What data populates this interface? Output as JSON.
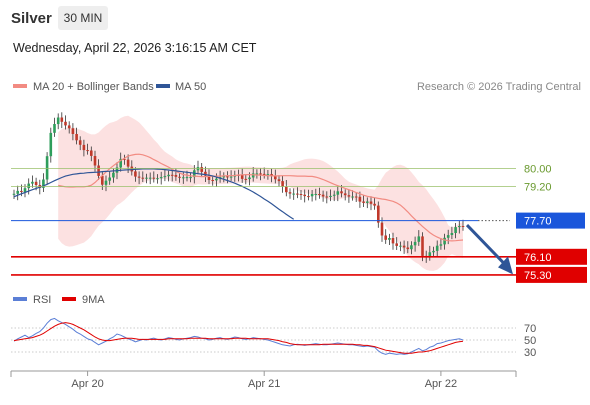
{
  "header": {
    "title": "Silver",
    "timeframe": "30 MIN",
    "datetime": "Wednesday, April 22, 2026 3:16:15 AM CET"
  },
  "colors": {
    "ma20": "#f28b82",
    "ma50": "#2f5597",
    "bollinger_fill": "#fbd7d7",
    "bullish": "#2e9e5b",
    "bearish": "#c0392b",
    "support": "#e00000",
    "pivot": "#1a56db",
    "resistance": "#9ac06a",
    "rsi": "#5b7fd6",
    "rsi_ma": "#e00000",
    "arrow": "#2f5597"
  },
  "chart_data": [
    {
      "type": "candlestick",
      "legend": [
        {
          "name": "MA 20 + Bollinger Bands",
          "color": "#f28b82"
        },
        {
          "name": "MA 50",
          "color": "#2f5597"
        }
      ],
      "credit": "Research © 2026 Trading Central",
      "x_tick_labels": [
        {
          "label": "Apr 20",
          "index": 20
        },
        {
          "label": "Apr 21",
          "index": 68
        },
        {
          "label": "Apr 22",
          "index": 116
        }
      ],
      "ylim": [
        74.9,
        82.8
      ],
      "levels": [
        {
          "value": 80.0,
          "label": "80.00",
          "kind": "resistance"
        },
        {
          "value": 79.2,
          "label": "79.20",
          "kind": "resistance"
        },
        {
          "value": 77.7,
          "label": "77.70",
          "kind": "pivot"
        },
        {
          "value": 76.1,
          "label": "76.10",
          "kind": "support"
        },
        {
          "value": 75.3,
          "label": "75.30",
          "kind": "support"
        }
      ],
      "forecast_arrow": {
        "from": 77.5,
        "to": 75.5,
        "direction": "down"
      },
      "close": [
        78.88,
        79.01,
        78.96,
        79.13,
        79.33,
        79.41,
        79.27,
        79.14,
        79.51,
        80.54,
        81.57,
        81.96,
        82.25,
        82.06,
        81.9,
        81.77,
        81.52,
        81.24,
        81.04,
        80.81,
        80.79,
        80.55,
        80.13,
        79.67,
        79.28,
        79.46,
        79.6,
        79.81,
        80.04,
        80.42,
        80.39,
        80.08,
        79.87,
        79.64,
        79.59,
        79.58,
        79.59,
        79.59,
        79.56,
        79.57,
        79.62,
        79.66,
        79.72,
        79.71,
        79.63,
        79.6,
        79.61,
        79.62,
        79.62,
        79.92,
        80.06,
        79.85,
        79.68,
        79.49,
        79.47,
        79.55,
        79.62,
        79.65,
        79.63,
        79.64,
        79.72,
        79.71,
        79.54,
        79.53,
        79.6,
        79.78,
        79.78,
        79.76,
        79.73,
        79.75,
        79.67,
        79.52,
        79.44,
        79.21,
        78.95,
        78.89,
        78.89,
        78.87,
        78.84,
        78.78,
        78.77,
        78.87,
        78.87,
        78.84,
        78.76,
        78.74,
        78.79,
        78.84,
        78.99,
        78.9,
        78.82,
        78.76,
        78.76,
        78.75,
        78.54,
        78.48,
        78.54,
        78.44,
        78.36,
        77.61,
        77.04,
        76.85,
        76.93,
        76.69,
        76.58,
        76.59,
        76.51,
        76.44,
        76.61,
        76.76,
        77.0,
        76.14,
        76.11,
        76.3,
        76.36,
        76.59,
        76.65,
        76.94,
        77.06,
        77.15,
        77.41,
        77.46,
        77.43
      ],
      "ma20": [
        79.25,
        79.22,
        79.19,
        79.18,
        79.18,
        79.19,
        79.19,
        79.19,
        79.21,
        79.26,
        79.38,
        79.53,
        79.69,
        79.84,
        79.99,
        80.12,
        80.24,
        80.35,
        80.45,
        80.55,
        80.59,
        80.62,
        80.63,
        80.6,
        80.55,
        80.48,
        80.39,
        80.31,
        80.22,
        80.14,
        80.06,
        79.96,
        79.87,
        79.8,
        79.73,
        79.7,
        79.67,
        79.66,
        79.65,
        79.64,
        79.64,
        79.65,
        79.66,
        79.66,
        79.66,
        79.67,
        79.68,
        79.68,
        79.69,
        79.71,
        79.72,
        79.73,
        79.73,
        79.72,
        79.71,
        79.7,
        79.69,
        79.68,
        79.67,
        79.67,
        79.67,
        79.68,
        79.68,
        79.68,
        79.67,
        79.66,
        79.66,
        79.66,
        79.65,
        79.65,
        79.62,
        79.57,
        79.51,
        79.44,
        79.37,
        79.3,
        79.24,
        79.18,
        79.12,
        79.06,
        79.0,
        78.94,
        78.88,
        78.82,
        78.77,
        78.74,
        78.71,
        78.68,
        78.65,
        78.63,
        78.59,
        78.55,
        78.48,
        78.38,
        78.24,
        78.08,
        77.91,
        77.75,
        77.59,
        77.44,
        77.3,
        77.17,
        77.06,
        76.97,
        76.9,
        76.84,
        76.81,
        76.8,
        76.81,
        76.83,
        76.84
      ],
      "ma50": [
        78.75,
        78.82,
        78.88,
        78.94,
        79.0,
        79.06,
        79.12,
        79.17,
        79.23,
        79.3,
        79.38,
        79.46,
        79.53,
        79.6,
        79.66,
        79.7,
        79.74,
        79.76,
        79.78,
        79.79,
        79.81,
        79.82,
        79.83,
        79.84,
        79.86,
        79.87,
        79.88,
        79.89,
        79.9,
        79.92,
        79.93,
        79.94,
        79.95,
        79.96,
        79.97,
        79.98,
        79.98,
        79.98,
        79.98,
        79.97,
        79.96,
        79.95,
        79.93,
        79.91,
        79.89,
        79.87,
        79.85,
        79.83,
        79.81,
        79.79,
        79.77,
        79.75,
        79.73,
        79.7,
        79.67,
        79.62,
        79.57,
        79.52,
        79.47,
        79.41,
        79.35,
        79.28,
        79.21,
        79.13,
        79.05,
        78.96,
        78.86,
        78.76,
        78.65,
        78.55,
        78.44,
        78.32,
        78.2,
        78.09,
        77.97,
        77.86,
        77.76
      ],
      "rsi": {
        "legend": [
          {
            "name": "RSI",
            "color": "#5b7fd6"
          },
          {
            "name": "9MA",
            "color": "#e00000"
          }
        ],
        "levels": [
          {
            "value": 70,
            "label": "70"
          },
          {
            "value": 50,
            "label": "50"
          },
          {
            "value": 30,
            "label": "30"
          }
        ],
        "ylim": [
          10,
          90
        ],
        "values": [
          48,
          52,
          55,
          58,
          54,
          57,
          61,
          64,
          70,
          78,
          84,
          86,
          82,
          79,
          76,
          72,
          68,
          63,
          60,
          56,
          52,
          50,
          46,
          42,
          45,
          48,
          52,
          55,
          60,
          58,
          55,
          52,
          50,
          47,
          49,
          51,
          50,
          52,
          53,
          51,
          50,
          52,
          54,
          53,
          51,
          50,
          52,
          53,
          54,
          56,
          55,
          53,
          52,
          50,
          51,
          53,
          54,
          52,
          51,
          53,
          55,
          54,
          52,
          51,
          52,
          54,
          53,
          52,
          51,
          50,
          48,
          46,
          44,
          42,
          41,
          40,
          42,
          43,
          42,
          41,
          42,
          43,
          44,
          43,
          42,
          42,
          43,
          44,
          45,
          44,
          43,
          42,
          42,
          41,
          40,
          39,
          40,
          39,
          38,
          32,
          28,
          26,
          28,
          27,
          26,
          27,
          26,
          27,
          30,
          33,
          36,
          32,
          34,
          38,
          40,
          44,
          45,
          47,
          49,
          50,
          51,
          52,
          50
        ],
        "ma": [
          49,
          50,
          51,
          52,
          53,
          54,
          56,
          58,
          61,
          65,
          69,
          73,
          76,
          78,
          79,
          78,
          76,
          73,
          70,
          67,
          63,
          59,
          55,
          52,
          50,
          49,
          49,
          50,
          51,
          52,
          53,
          53,
          53,
          52,
          51,
          51,
          51,
          51,
          51,
          51,
          51,
          51,
          52,
          52,
          52,
          52,
          52,
          52,
          53,
          53,
          53,
          53,
          53,
          52,
          52,
          52,
          52,
          52,
          52,
          52,
          53,
          53,
          53,
          53,
          52,
          52,
          52,
          52,
          52,
          52,
          51,
          50,
          49,
          47,
          46,
          44,
          43,
          42,
          42,
          42,
          42,
          42,
          42,
          42,
          43,
          43,
          43,
          43,
          43,
          43,
          43,
          43,
          43,
          42,
          42,
          41,
          41,
          40,
          39,
          37,
          35,
          33,
          32,
          31,
          30,
          29,
          28,
          28,
          28,
          29,
          30,
          30,
          31,
          32,
          34,
          36,
          38,
          40,
          42,
          44,
          46,
          47,
          48
        ]
      }
    }
  ]
}
